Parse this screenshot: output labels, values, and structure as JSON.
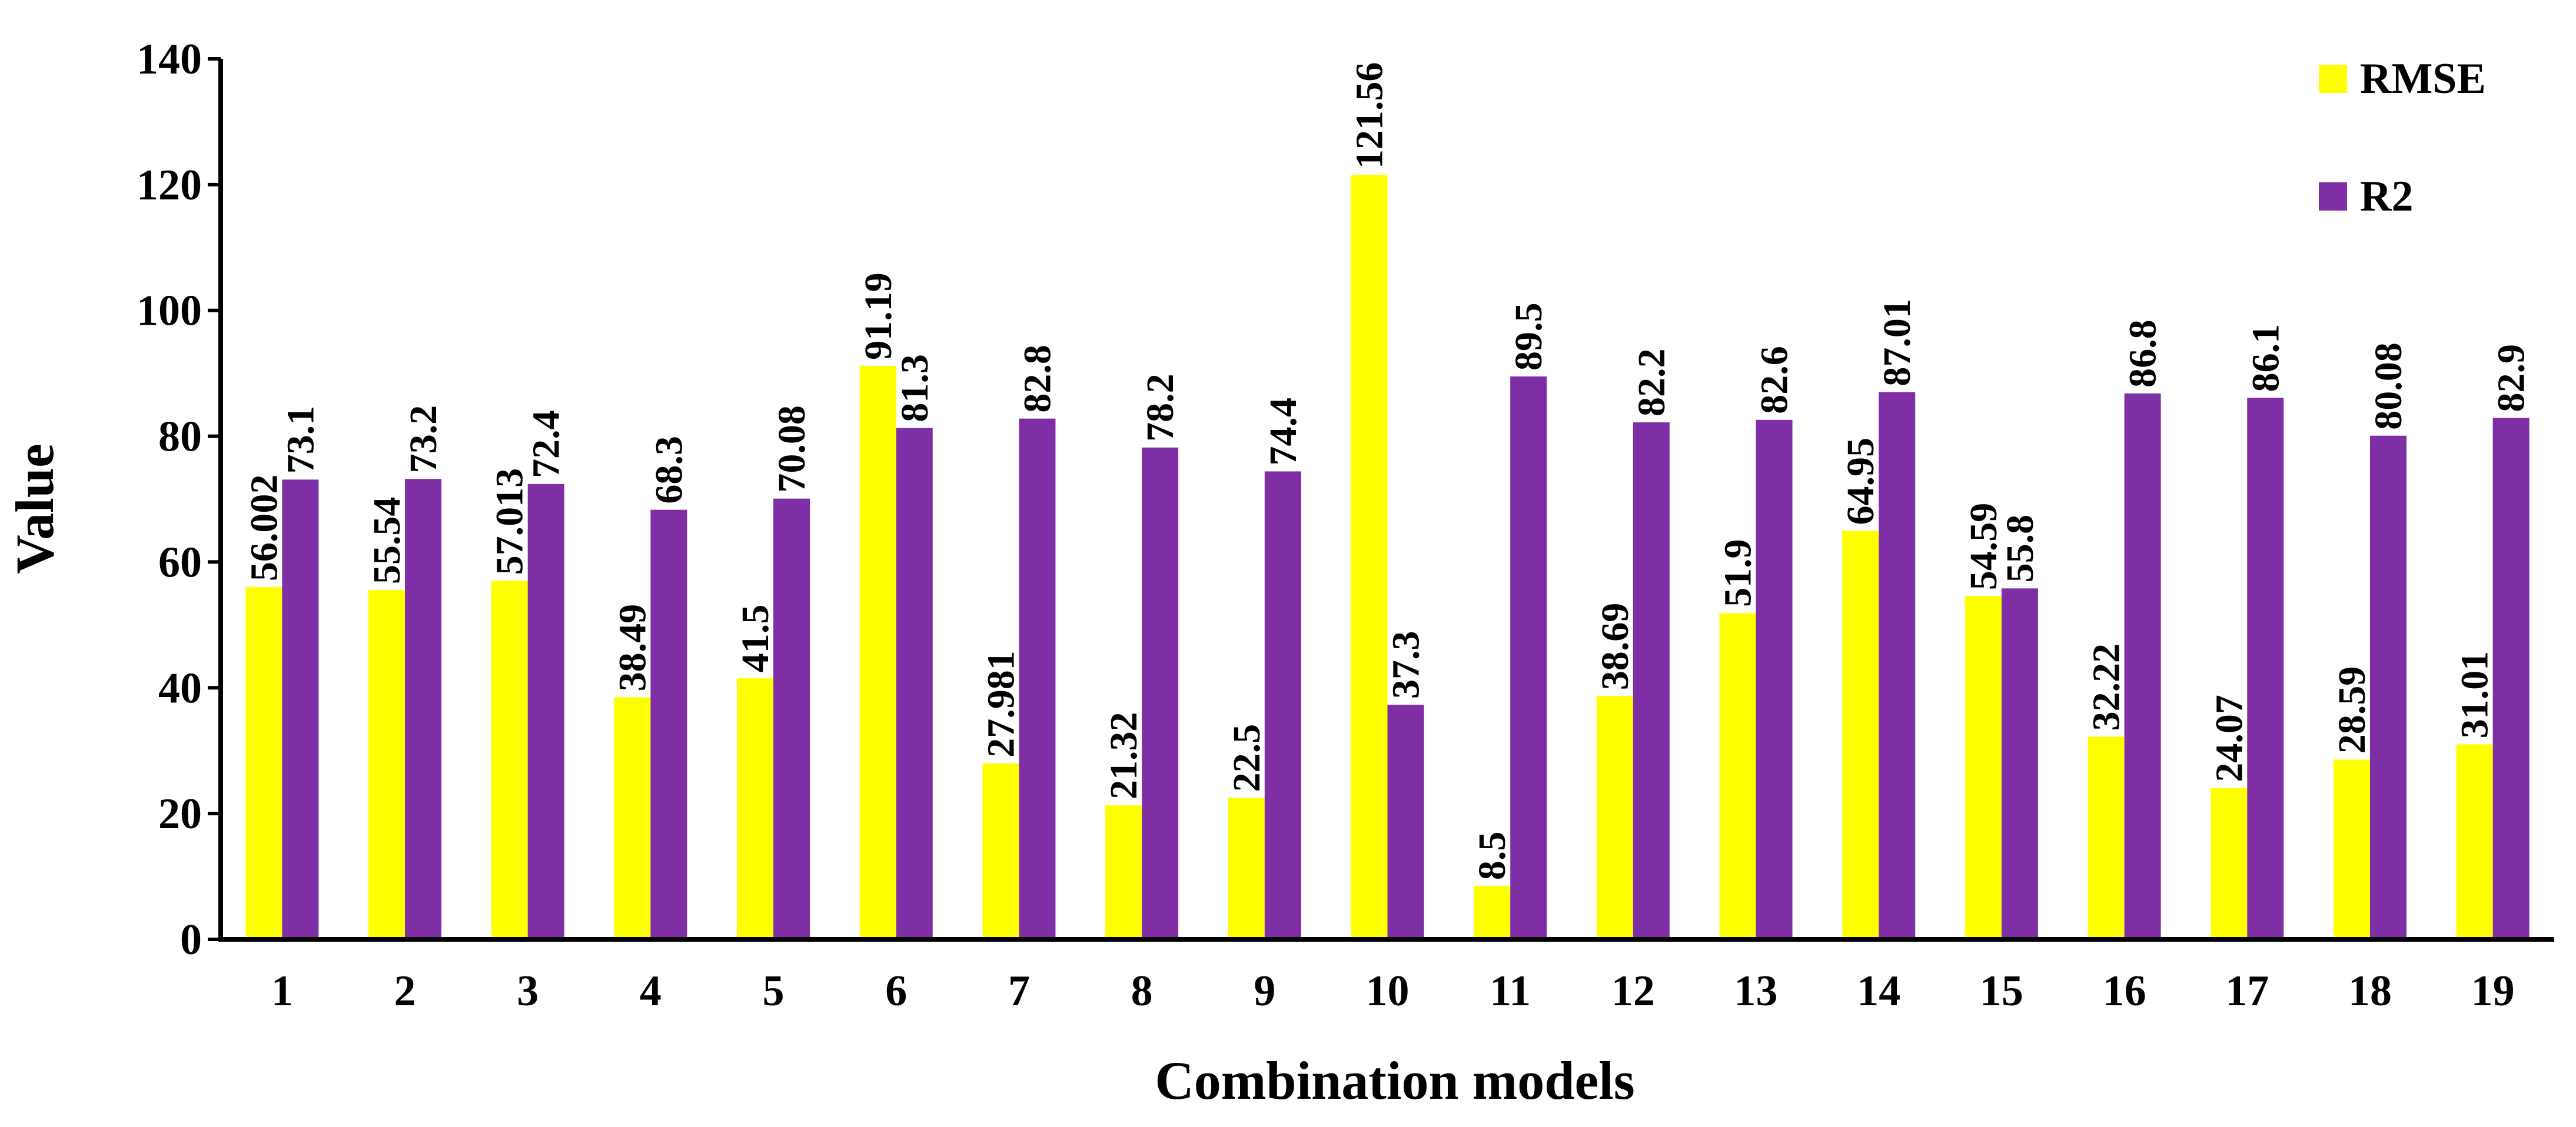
{
  "chart_data": {
    "type": "bar",
    "title": "",
    "xlabel": "Combination models",
    "ylabel": "Value",
    "ylim": [
      0,
      140
    ],
    "yticks": [
      0,
      20,
      40,
      60,
      80,
      100,
      120,
      140
    ],
    "grid": false,
    "legend_position": "top-right",
    "categories": [
      "1",
      "2",
      "3",
      "4",
      "5",
      "6",
      "7",
      "8",
      "9",
      "10",
      "11",
      "12",
      "13",
      "14",
      "15",
      "16",
      "17",
      "18",
      "19"
    ],
    "series": [
      {
        "name": "RMSE",
        "color": "#ffff00",
        "values": [
          56.002,
          55.54,
          57.013,
          38.49,
          41.5,
          91.19,
          27.981,
          21.32,
          22.5,
          121.56,
          8.5,
          38.69,
          51.9,
          64.95,
          54.59,
          32.22,
          24.07,
          28.59,
          31.01
        ],
        "labels": [
          "56.002",
          "55.54",
          "57.013",
          "38.49",
          "41.5",
          "91.19",
          "27.981",
          "21.32",
          "22.5",
          "121.56",
          "8.5",
          "38.69",
          "51.9",
          "64.95",
          "54.59",
          "32.22",
          "24.07",
          "28.59",
          "31.01"
        ]
      },
      {
        "name": "R2",
        "color": "#7f2fa6",
        "values": [
          73.1,
          73.2,
          72.4,
          68.3,
          70.08,
          81.3,
          82.8,
          78.2,
          74.4,
          37.3,
          89.5,
          82.2,
          82.6,
          87.01,
          55.8,
          86.8,
          86.1,
          80.08,
          82.9
        ],
        "labels": [
          "73.1",
          "73.2",
          "72.4",
          "68.3",
          "70.08",
          "81.3",
          "82.8",
          "78.2",
          "74.4",
          "37.3",
          "89.5",
          "82.2",
          "82.6",
          "87.01",
          "55.8",
          "86.8",
          "86.1",
          "80.08",
          "82.9"
        ]
      }
    ]
  }
}
